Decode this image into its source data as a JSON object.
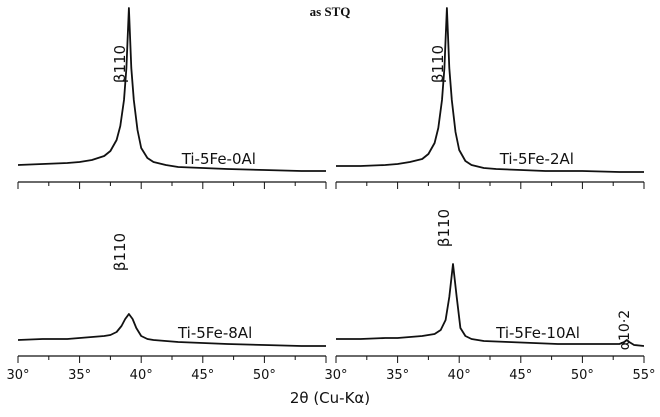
{
  "figure": {
    "title": "as STQ",
    "xlabel": "2θ (Cu-Kα)"
  },
  "chart_data": [
    {
      "type": "line",
      "sample": "Ti-5Fe-0Al",
      "xlim": [
        30,
        55
      ],
      "tick_values": [
        30,
        35,
        40,
        45,
        50,
        55
      ],
      "tick_labels": [],
      "peaks": [
        {
          "label": "β110",
          "x": 39.0
        }
      ],
      "x": [
        30,
        32,
        34,
        35,
        36,
        37,
        37.5,
        38,
        38.3,
        38.6,
        38.8,
        39.0,
        39.2,
        39.4,
        39.7,
        40,
        40.5,
        41,
        42,
        43,
        45,
        47,
        50,
        53,
        55
      ],
      "y": [
        13,
        14,
        15,
        16,
        18,
        22,
        27,
        38,
        52,
        78,
        110,
        170,
        110,
        78,
        48,
        30,
        20,
        16,
        13,
        11,
        10,
        9,
        8,
        7,
        7
      ]
    },
    {
      "type": "line",
      "sample": "Ti-5Fe-2Al",
      "xlim": [
        30,
        55
      ],
      "tick_values": [
        30,
        35,
        40,
        45,
        50,
        55
      ],
      "tick_labels": [],
      "peaks": [
        {
          "label": "β110",
          "x": 39.0
        }
      ],
      "x": [
        30,
        32,
        34,
        35,
        36,
        37,
        37.5,
        38,
        38.3,
        38.6,
        38.8,
        39.0,
        39.2,
        39.4,
        39.7,
        40,
        40.5,
        41,
        42,
        43,
        45,
        47,
        50,
        53,
        55
      ],
      "y": [
        12,
        12,
        13,
        14,
        16,
        19,
        24,
        35,
        50,
        78,
        110,
        170,
        110,
        78,
        46,
        28,
        17,
        13,
        10,
        9,
        8,
        7,
        7,
        6,
        6
      ]
    },
    {
      "type": "line",
      "sample": "Ti-5Fe-8Al",
      "xlim": [
        30,
        55
      ],
      "tick_values": [
        30,
        35,
        40,
        45,
        50,
        55
      ],
      "tick_labels": [
        "30°",
        "35°",
        "40°",
        "45°",
        "50°"
      ],
      "peaks": [
        {
          "label": "β110",
          "x": 39.0
        }
      ],
      "x": [
        30,
        32,
        34,
        35,
        36,
        37,
        37.5,
        38,
        38.4,
        38.7,
        39.0,
        39.3,
        39.6,
        40,
        40.5,
        41,
        42,
        43,
        45,
        47,
        50,
        53,
        55
      ],
      "y": [
        12,
        13,
        13,
        14,
        15,
        16,
        17,
        20,
        26,
        33,
        38,
        33,
        24,
        16,
        13,
        12,
        11,
        10,
        9,
        8,
        7,
        6,
        6
      ]
    },
    {
      "type": "line",
      "sample": "Ti-5Fe-10Al",
      "xlim": [
        30,
        55
      ],
      "tick_values": [
        30,
        35,
        40,
        45,
        50,
        55
      ],
      "tick_labels": [
        "30°",
        "35°",
        "40°",
        "45°",
        "50°",
        "55°"
      ],
      "peaks": [
        {
          "label": "β110",
          "x": 39.5
        },
        {
          "label": "α10·2",
          "x": 53.6
        }
      ],
      "x": [
        30,
        32,
        34,
        35,
        36,
        37,
        38,
        38.5,
        38.9,
        39.2,
        39.5,
        39.8,
        40.1,
        40.5,
        41,
        42,
        44,
        46,
        48,
        50,
        52,
        53,
        53.4,
        53.6,
        53.8,
        54.2,
        55
      ],
      "y": [
        13,
        13,
        14,
        14,
        15,
        16,
        18,
        22,
        32,
        55,
        88,
        55,
        24,
        16,
        13,
        11,
        10,
        9,
        8,
        8,
        8,
        8,
        10,
        12,
        10,
        7,
        6
      ]
    }
  ]
}
